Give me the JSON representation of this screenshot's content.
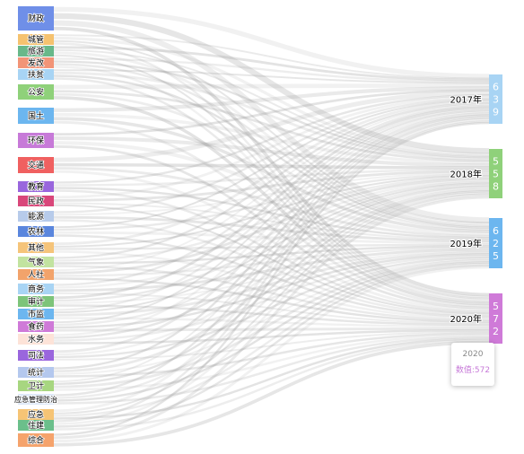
{
  "chart_data": {
    "type": "sankey",
    "sources": [
      {
        "name": "财政",
        "color": "#6f8fe8"
      },
      {
        "name": "城管",
        "color": "#f5c26f"
      },
      {
        "name": "旅游",
        "color": "#68b88a"
      },
      {
        "name": "发改",
        "color": "#f29477"
      },
      {
        "name": "扶贫",
        "color": "#a8d4f4"
      },
      {
        "name": "公安",
        "color": "#8fd17a"
      },
      {
        "name": "国土",
        "color": "#6cb6ef"
      },
      {
        "name": "环保",
        "color": "#c77ad8"
      },
      {
        "name": "交通",
        "color": "#f06060"
      },
      {
        "name": "教育",
        "color": "#9966dd"
      },
      {
        "name": "民政",
        "color": "#d9477a"
      },
      {
        "name": "能源",
        "color": "#b7cbea"
      },
      {
        "name": "农林",
        "color": "#5a86dd"
      },
      {
        "name": "其他",
        "color": "#f5c47a"
      },
      {
        "name": "气象",
        "color": "#c2e3a0"
      },
      {
        "name": "人社",
        "color": "#f2a36b"
      },
      {
        "name": "商务",
        "color": "#a8d4f4"
      },
      {
        "name": "审计",
        "color": "#7dc47a"
      },
      {
        "name": "市监",
        "color": "#6cb6ef"
      },
      {
        "name": "食药",
        "color": "#cf7ad8"
      },
      {
        "name": "水务",
        "color": "#fde3d8"
      },
      {
        "name": "司法",
        "color": "#9a66dd"
      },
      {
        "name": "统计",
        "color": "#b4c8ee"
      },
      {
        "name": "卫计",
        "color": "#a7d680"
      },
      {
        "name": "应急管理防治",
        "color": "#dde8f8"
      },
      {
        "name": "应急",
        "color": "#f6c475"
      },
      {
        "name": "住建",
        "color": "#6bbf8b"
      },
      {
        "name": "综合",
        "color": "#f5a36c"
      }
    ],
    "targets": [
      {
        "name": "2017年",
        "value": 639,
        "color": "#a8d4f4"
      },
      {
        "name": "2018年",
        "value": 558,
        "color": "#8fd17a"
      },
      {
        "name": "2019年",
        "value": 625,
        "color": "#6cb6ef"
      },
      {
        "name": "2020年",
        "value": 572,
        "color": "#cf7ad8"
      }
    ]
  },
  "tooltip": {
    "title": "2020",
    "label": "数值:",
    "value": "572"
  }
}
